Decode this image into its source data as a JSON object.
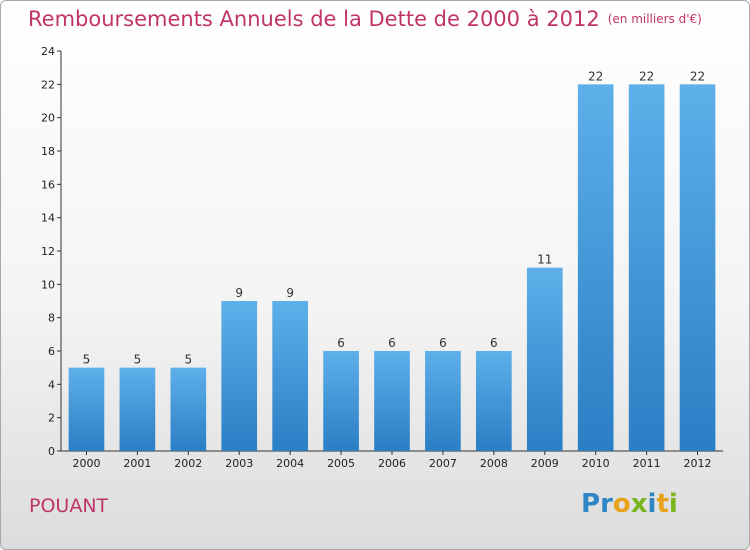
{
  "header": {
    "title": "Remboursements Annuels de la Dette de 2000 à 2012",
    "subtitle": "(en milliers d'€)"
  },
  "footer": {
    "commune": "POUANT",
    "logo_letters": [
      "P",
      "r",
      "o",
      "x",
      "i",
      "t",
      "i"
    ]
  },
  "colors": {
    "title": "#c0346a",
    "bar_top": "#5eb0ea",
    "bar_bottom": "#2a7ec4",
    "logo": [
      "#2e86c7",
      "#2e86c7",
      "#e8a21a",
      "#7ab51d",
      "#2e86c7",
      "#e8a21a",
      "#7ab51d"
    ]
  },
  "chart_data": {
    "type": "bar",
    "title": "Remboursements Annuels de la Dette de 2000 à 2012",
    "subtitle": "(en milliers d'€)",
    "categories": [
      "2000",
      "2001",
      "2002",
      "2003",
      "2004",
      "2005",
      "2006",
      "2007",
      "2008",
      "2009",
      "2010",
      "2011",
      "2012"
    ],
    "values": [
      5,
      5,
      5,
      9,
      9,
      6,
      6,
      6,
      6,
      11,
      22,
      22,
      22
    ],
    "ylim": [
      0,
      24
    ],
    "yticks": [
      0,
      2,
      4,
      6,
      8,
      10,
      12,
      14,
      16,
      18,
      20,
      22,
      24
    ],
    "grid": false,
    "legend": "none",
    "data_labels": true
  }
}
